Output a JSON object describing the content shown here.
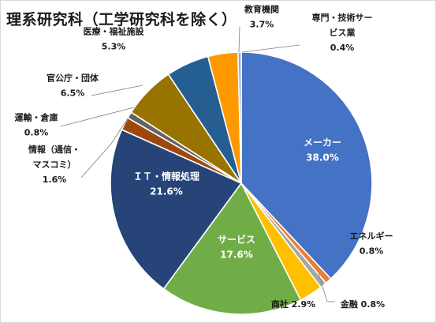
{
  "chart_data": {
    "type": "pie",
    "title": "理系研究科（工学研究科を除く）",
    "slices": [
      {
        "name": "メーカー",
        "value": 38.0,
        "pct": "38.0%",
        "color": "#4472c4"
      },
      {
        "name": "エネルギー",
        "value": 0.8,
        "pct": "0.8%",
        "color": "#ed7d31"
      },
      {
        "name": "金融",
        "value": 0.8,
        "pct": "0.8%",
        "color": "#a5a5a5"
      },
      {
        "name": "商社",
        "value": 2.9,
        "pct": "2.9%",
        "color": "#ffc000"
      },
      {
        "name": "サービス",
        "value": 17.6,
        "pct": "17.6%",
        "color": "#70ad47"
      },
      {
        "name": "ＩＴ・情報処理",
        "value": 21.6,
        "pct": "21.6%",
        "color": "#264478"
      },
      {
        "name": "情報（通信・マスコミ）",
        "value": 1.6,
        "pct": "1.6%",
        "color": "#9e480e"
      },
      {
        "name": "運輸・倉庫",
        "value": 0.8,
        "pct": "0.8%",
        "color": "#636363"
      },
      {
        "name": "官公庁・団体",
        "value": 6.5,
        "pct": "6.5%",
        "color": "#997300"
      },
      {
        "name": "医療・福祉施設",
        "value": 5.3,
        "pct": "5.3%",
        "color": "#255e91"
      },
      {
        "name": "教育機関",
        "value": 3.7,
        "pct": "3.7%",
        "color": "#ff9900"
      },
      {
        "name": "専門・技術サービス業",
        "value": 0.4,
        "pct": "0.4%",
        "color": "#8faadc"
      }
    ],
    "label_lines": [
      [
        "メーカー",
        "38.0%"
      ],
      [
        "エネルギー",
        "0.8%"
      ],
      [
        "金融 0.8%"
      ],
      [
        "商社 2.9%"
      ],
      [
        "サービス",
        "17.6%"
      ],
      [
        "ＩＴ・情報処理",
        "21.6%"
      ],
      [
        "情報（通信・",
        "マスコミ）",
        "1.6%"
      ],
      [
        "運輸・倉庫",
        "0.8%"
      ],
      [
        "官公庁・団体",
        "6.5%"
      ],
      [
        "医療・福祉施設",
        "5.3%"
      ],
      [
        "教育機関",
        "3.7%"
      ],
      [
        "専門・技術サー",
        "ビス業",
        "0.4%"
      ]
    ]
  }
}
